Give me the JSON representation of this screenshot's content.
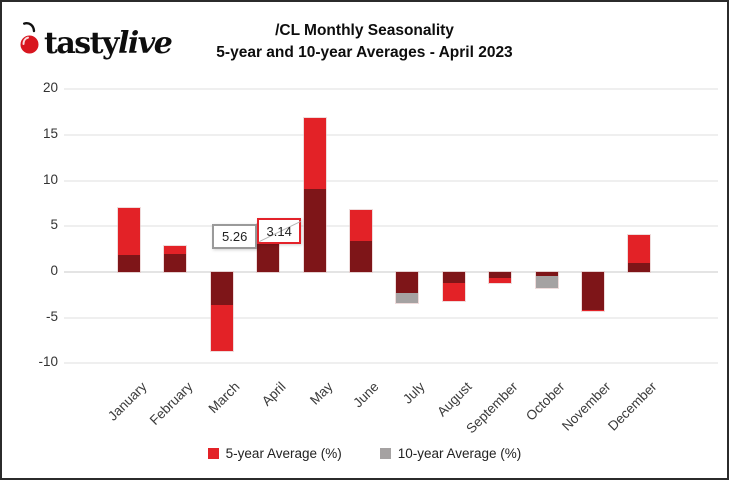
{
  "logo": {
    "brand_tasty": "tasty",
    "brand_live": "live",
    "cherry_color": "#d8161f"
  },
  "title": {
    "line1": "/CL Monthly Seasonality",
    "line2": "5-year and 10-year Averages  - April 2023"
  },
  "chart_data": {
    "type": "bar",
    "categories": [
      "January",
      "February",
      "March",
      "April",
      "May",
      "June",
      "July",
      "August",
      "September",
      "October",
      "November",
      "December"
    ],
    "series": [
      {
        "name": "5-year Average (%)",
        "color": "#e32227",
        "values": [
          7.0,
          2.9,
          -8.7,
          3.14,
          16.9,
          6.8,
          -2.3,
          -3.2,
          -1.2,
          -0.4,
          -4.3,
          4.1
        ]
      },
      {
        "name": "10-year Average (%)",
        "color": "#a5a2a2",
        "values": [
          1.9,
          2.0,
          -3.6,
          5.26,
          9.1,
          3.4,
          -3.4,
          -1.2,
          -0.7,
          -1.8,
          -4.2,
          1.0
        ]
      }
    ],
    "overlap_color": "#7e1518",
    "ylim": [
      -10,
      20
    ],
    "yticks": [
      20,
      15,
      10,
      5,
      0,
      -5,
      -10
    ],
    "grid": true,
    "legend_position": "bottom",
    "annotations": [
      {
        "label": "5.26",
        "month": "April",
        "series": "10-year Average (%)",
        "box_color": "#9a9a9a"
      },
      {
        "label": "3.14",
        "month": "April",
        "series": "5-year Average (%)",
        "box_color": "#e3222a"
      }
    ]
  },
  "legend": {
    "items": [
      {
        "label": "5-year Average (%)",
        "color": "#e32227"
      },
      {
        "label": "10-year Average (%)",
        "color": "#a5a2a2"
      }
    ]
  }
}
